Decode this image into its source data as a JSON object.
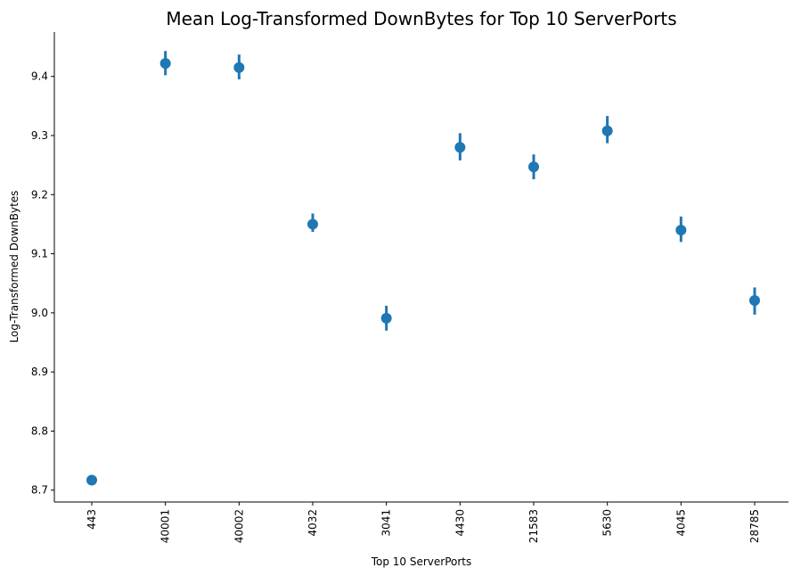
{
  "chart_data": {
    "type": "scatter",
    "title": "Mean Log-Transformed DownBytes for Top 10 ServerPorts",
    "xlabel": "Top 10 ServerPorts",
    "ylabel": "Log-Transformed DownBytes",
    "ylim": [
      8.68,
      9.475
    ],
    "yticks": [
      "8.7",
      "8.8",
      "8.9",
      "9.0",
      "9.1",
      "9.2",
      "9.3",
      "9.4"
    ],
    "categories": [
      "443",
      "40001",
      "40002",
      "4032",
      "3041",
      "4430",
      "21583",
      "5630",
      "4045",
      "28785"
    ],
    "values": [
      8.717,
      9.422,
      9.415,
      9.15,
      8.991,
      9.28,
      9.247,
      9.308,
      9.14,
      9.021
    ],
    "error_low": [
      8.717,
      9.402,
      9.395,
      9.137,
      8.97,
      9.258,
      9.226,
      9.287,
      9.12,
      8.997
    ],
    "error_high": [
      8.717,
      9.443,
      9.437,
      9.168,
      9.012,
      9.304,
      9.268,
      9.333,
      9.163,
      9.043
    ],
    "grid": false,
    "color": "#1f77b4"
  }
}
